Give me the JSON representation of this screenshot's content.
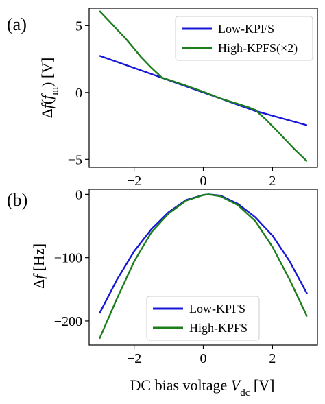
{
  "chart_data": [
    {
      "panel_label": "(a)",
      "type": "line",
      "ylabel": "Δf(f_m) [V]",
      "xlim": [
        -3.3,
        3.3
      ],
      "ylim": [
        -5.6,
        6.3
      ],
      "xticks": [
        -2,
        0,
        2
      ],
      "xtick_labels": [
        "−2",
        "0",
        "2"
      ],
      "yticks": [
        -5,
        0,
        5
      ],
      "ytick_labels": [
        "−5",
        "0",
        "5"
      ],
      "grid": false,
      "legend_position": "top-right",
      "series": [
        {
          "name": "Low-KPFS",
          "color": "#1717d8",
          "x": [
            -3,
            -1.5,
            0,
            1.5,
            3
          ],
          "y": [
            2.75,
            1.38,
            0.0,
            -1.38,
            -2.45
          ]
        },
        {
          "name": "High-KPFS(×2)",
          "color": "#1c7d1c",
          "x": [
            -3,
            -2.6,
            -2.2,
            -1.8,
            -1.5,
            -1.2,
            -1.0,
            -0.5,
            0,
            0.5,
            1.0,
            1.3,
            1.5,
            1.8,
            2.2,
            2.6,
            3
          ],
          "y": [
            6.1,
            5.0,
            3.9,
            2.65,
            1.85,
            1.12,
            0.95,
            0.52,
            0.05,
            -0.45,
            -0.85,
            -1.1,
            -1.3,
            -2.0,
            -3.05,
            -4.15,
            -5.15
          ]
        }
      ]
    },
    {
      "panel_label": "(b)",
      "type": "line",
      "ylabel": "Δf [Hz]",
      "xlabel": "DC bias voltage V_dc [V]",
      "xlim": [
        -3.3,
        3.3
      ],
      "ylim": [
        -238,
        8
      ],
      "xticks": [
        -2,
        0,
        2
      ],
      "xtick_labels": [
        "−2",
        "0",
        "2"
      ],
      "yticks": [
        0,
        -100,
        -200
      ],
      "ytick_labels": [
        "0",
        "−100",
        "−200"
      ],
      "grid": false,
      "legend_position": "bottom-center",
      "series": [
        {
          "name": "Low-KPFS",
          "color": "#1717d8",
          "x": [
            -3,
            -2.5,
            -2,
            -1.5,
            -1,
            -0.5,
            0,
            0.15,
            0.5,
            1,
            1.5,
            2,
            2.5,
            3
          ],
          "y": [
            -188,
            -135,
            -90,
            -55,
            -28,
            -9,
            -1,
            0,
            -2,
            -15,
            -36,
            -65,
            -106,
            -157
          ]
        },
        {
          "name": "High-KPFS",
          "color": "#1c7d1c",
          "x": [
            -3,
            -2.5,
            -2,
            -1.5,
            -1,
            -0.5,
            0,
            0.15,
            0.5,
            1,
            1.5,
            2,
            2.5,
            3
          ],
          "y": [
            -228,
            -165,
            -106,
            -60,
            -30,
            -10,
            -1,
            0,
            -3,
            -17,
            -42,
            -83,
            -135,
            -193
          ]
        }
      ]
    }
  ]
}
